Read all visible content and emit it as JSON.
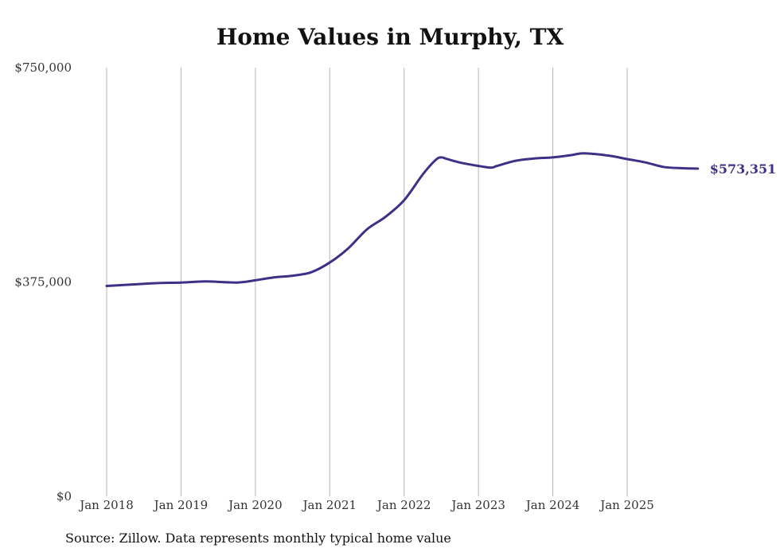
{
  "chart_data": {
    "type": "line",
    "title": "Home Values in Murphy, TX",
    "xlabel": "",
    "ylabel": "",
    "ylim": [
      0,
      750000
    ],
    "xlim": [
      2018,
      2025.95
    ],
    "y_ticks": [
      {
        "value": 0,
        "label": "$0"
      },
      {
        "value": 375000,
        "label": "$375,000"
      },
      {
        "value": 750000,
        "label": "$750,000"
      }
    ],
    "x_ticks": [
      {
        "value": 2018,
        "label": "Jan 2018"
      },
      {
        "value": 2019,
        "label": "Jan 2019"
      },
      {
        "value": 2020,
        "label": "Jan 2020"
      },
      {
        "value": 2021,
        "label": "Jan 2021"
      },
      {
        "value": 2022,
        "label": "Jan 2022"
      },
      {
        "value": 2023,
        "label": "Jan 2023"
      },
      {
        "value": 2024,
        "label": "Jan 2024"
      },
      {
        "value": 2025,
        "label": "Jan 2025"
      }
    ],
    "grid": "vertical",
    "series": [
      {
        "name": "Typical home value",
        "color": "#3b3287",
        "x": [
          2018.0,
          2018.33,
          2018.67,
          2019.0,
          2019.33,
          2019.75,
          2020.0,
          2020.25,
          2020.5,
          2020.75,
          2021.0,
          2021.25,
          2021.5,
          2021.75,
          2022.0,
          2022.25,
          2022.42,
          2022.5,
          2022.58,
          2022.75,
          2023.0,
          2023.17,
          2023.25,
          2023.5,
          2023.75,
          2024.0,
          2024.25,
          2024.42,
          2024.75,
          2025.0,
          2025.25,
          2025.5,
          2025.75,
          2025.95
        ],
        "values": [
          368000,
          370500,
          373000,
          374000,
          376000,
          374000,
          378000,
          383000,
          386000,
          392000,
          409000,
          434000,
          467000,
          489000,
          518000,
          563000,
          588000,
          593000,
          590000,
          584000,
          578000,
          575000,
          578000,
          587000,
          591000,
          593000,
          597000,
          600000,
          596000,
          590000,
          584000,
          576000,
          574000,
          573351
        ]
      }
    ],
    "end_label": "$573,351"
  },
  "footer": {
    "source": "Source: Zillow. Data represents monthly typical home value"
  }
}
